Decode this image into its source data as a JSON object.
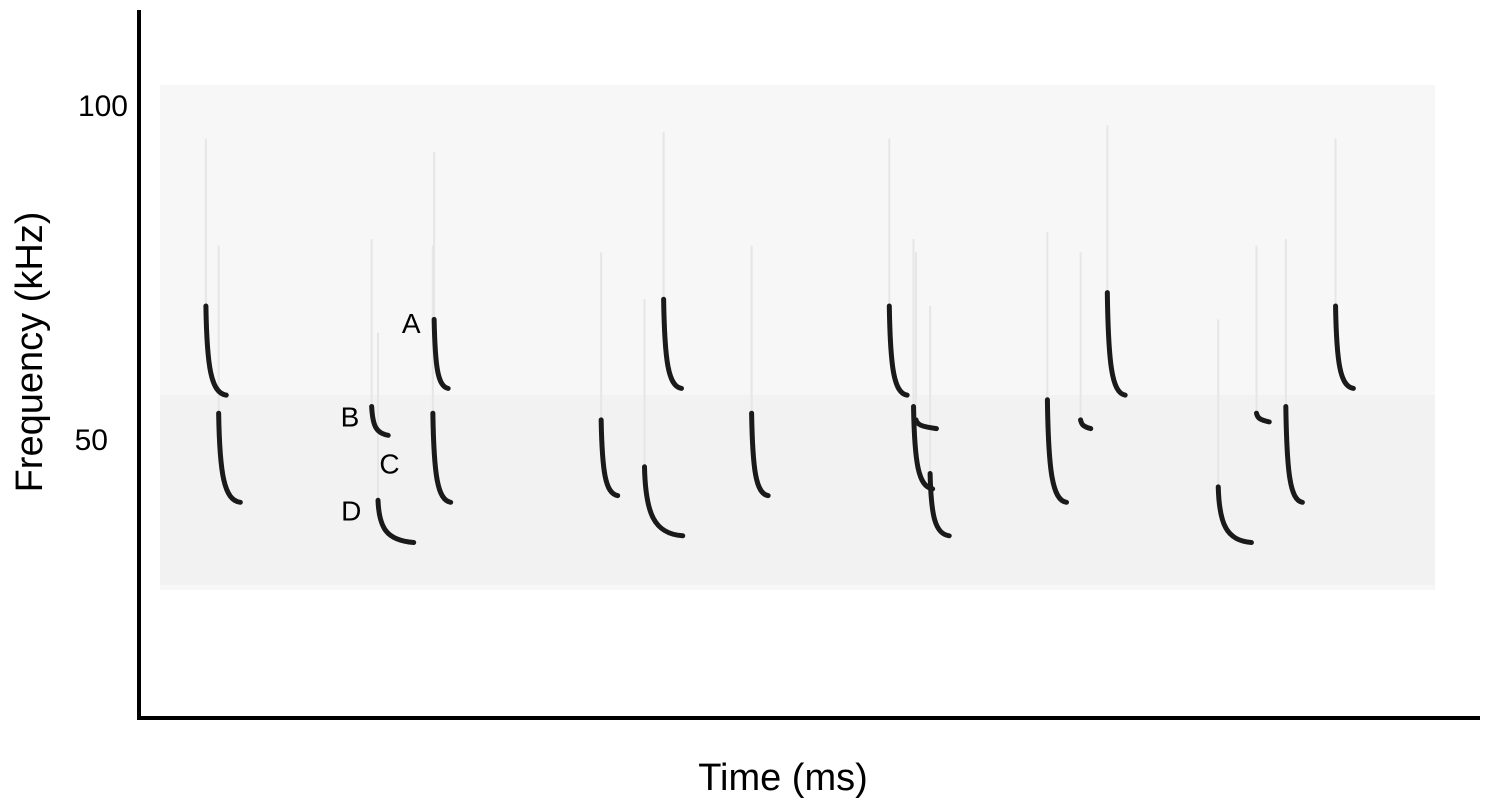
{
  "chart_data": {
    "type": "scatter",
    "title": "",
    "xlabel": "Time (ms)",
    "ylabel": "Frequency (kHz)",
    "yticks": [
      100,
      50
    ],
    "ylim": [
      10,
      116
    ],
    "xlim": [
      0,
      100
    ],
    "grid": false,
    "legend": "none",
    "colors": {
      "call": "#1a1a1a",
      "axis": "#000000",
      "noise": "#f4f4f4"
    },
    "annotations": [
      {
        "label": "A",
        "x": 19.7,
        "y": 66
      },
      {
        "label": "B",
        "x": 14.9,
        "y": 52
      },
      {
        "label": "C",
        "x": 18.0,
        "y": 45
      },
      {
        "label": "D",
        "x": 15.0,
        "y": 38
      }
    ],
    "calls": [
      {
        "x": 3.6,
        "f_start": 70,
        "f_end": 57,
        "dur": 1.6
      },
      {
        "x": 4.6,
        "f_start": 54,
        "f_end": 41,
        "dur": 1.7
      },
      {
        "x": 16.6,
        "f_start": 55,
        "f_end": 51,
        "dur": 1.3
      },
      {
        "x": 17.1,
        "f_start": 41,
        "f_end": 35,
        "dur": 2.8
      },
      {
        "x": 21.5,
        "f_start": 68,
        "f_end": 58,
        "dur": 1.1
      },
      {
        "x": 21.4,
        "f_start": 54,
        "f_end": 41,
        "dur": 1.4
      },
      {
        "x": 34.6,
        "f_start": 53,
        "f_end": 42,
        "dur": 1.3
      },
      {
        "x": 38.0,
        "f_start": 46,
        "f_end": 36,
        "dur": 3.0
      },
      {
        "x": 39.5,
        "f_start": 71,
        "f_end": 58,
        "dur": 1.4
      },
      {
        "x": 46.4,
        "f_start": 54,
        "f_end": 42,
        "dur": 1.3
      },
      {
        "x": 57.2,
        "f_start": 70,
        "f_end": 57,
        "dur": 1.4
      },
      {
        "x": 59.1,
        "f_start": 55,
        "f_end": 43,
        "dur": 1.5
      },
      {
        "x": 59.3,
        "f_start": 53,
        "f_end": 52,
        "dur": 1.6
      },
      {
        "x": 60.4,
        "f_start": 45,
        "f_end": 36,
        "dur": 1.5
      },
      {
        "x": 69.6,
        "f_start": 56,
        "f_end": 41,
        "dur": 1.5
      },
      {
        "x": 72.2,
        "f_start": 53,
        "f_end": 52,
        "dur": 0.8
      },
      {
        "x": 74.3,
        "f_start": 72,
        "f_end": 57,
        "dur": 1.4
      },
      {
        "x": 83.0,
        "f_start": 43,
        "f_end": 35,
        "dur": 2.6
      },
      {
        "x": 86.0,
        "f_start": 54,
        "f_end": 53,
        "dur": 1.0
      },
      {
        "x": 88.3,
        "f_start": 55,
        "f_end": 41,
        "dur": 1.3
      },
      {
        "x": 92.2,
        "f_start": 70,
        "f_end": 58,
        "dur": 1.4
      }
    ]
  }
}
